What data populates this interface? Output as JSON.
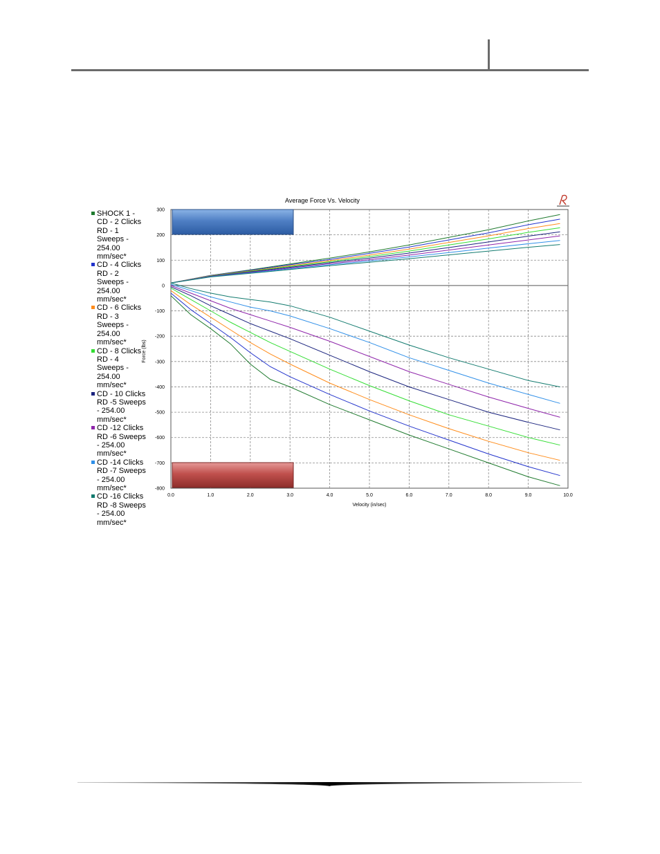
{
  "chart_data": {
    "type": "line",
    "title": "Average Force Vs. Velocity",
    "xlabel": "Velocity (in/sec)",
    "ylabel": "Force (lbs)",
    "xlim": [
      0,
      10
    ],
    "ylim": [
      -800,
      300
    ],
    "x_ticks": [
      "0.0",
      "1.0",
      "2.0",
      "3.0",
      "4.0",
      "5.0",
      "6.0",
      "7.0",
      "8.0",
      "9.0",
      "10.0"
    ],
    "y_ticks": [
      "300",
      "200",
      "100",
      "0",
      "-100",
      "-200",
      "-300",
      "-400",
      "-500",
      "-600",
      "-700",
      "-800"
    ],
    "grid": true,
    "legend_position": "left",
    "x": [
      0.0,
      0.5,
      1.0,
      1.5,
      2.0,
      2.5,
      3.0,
      4.0,
      5.0,
      6.0,
      7.0,
      8.0,
      9.0,
      9.8
    ],
    "series": [
      {
        "name": "SHOCK 1 - CD - 2 Clicks RD - 1 Sweeps - 254.00 mm/sec*",
        "color": "#1f7a2e",
        "values": [
          -40,
          -115,
          -170,
          -230,
          -310,
          -370,
          -400,
          -470,
          -530,
          -590,
          -645,
          -700,
          -755,
          -790
        ]
      },
      {
        "name": "CD - 4 Clicks RD - 2 Sweeps - 254.00 mm/sec*",
        "color": "#2233cc",
        "values": [
          -30,
          -95,
          -150,
          -205,
          -265,
          -320,
          -360,
          -430,
          -495,
          -555,
          -610,
          -665,
          -715,
          -750
        ]
      },
      {
        "name": "CD - 6 Clicks RD - 3 Sweeps - 254.00 mm/sec*",
        "color": "#ff8c1a",
        "values": [
          -20,
          -75,
          -125,
          -175,
          -225,
          -270,
          -310,
          -385,
          -450,
          -510,
          -565,
          -615,
          -660,
          -690
        ]
      },
      {
        "name": " CD - 8 Clicks RD - 4 Sweeps - 254.00 mm/sec*",
        "color": "#33dd33",
        "values": [
          -10,
          -55,
          -100,
          -145,
          -185,
          -225,
          -260,
          -330,
          -395,
          -455,
          -510,
          -555,
          -600,
          -630
        ]
      },
      {
        "name": "CD - 10 Clicks RD -5 Sweeps - 254.00 mm/sec*",
        "color": "#1a237e",
        "values": [
          -5,
          -40,
          -80,
          -115,
          -150,
          -180,
          -210,
          -275,
          -340,
          -400,
          -450,
          -500,
          -540,
          -570
        ]
      },
      {
        "name": "CD -12 Clicks RD -6 Sweeps - 254.00 mm/sec*",
        "color": "#8e24aa",
        "values": [
          0,
          -30,
          -60,
          -90,
          -115,
          -140,
          -165,
          -220,
          -280,
          -340,
          -390,
          -440,
          -485,
          -520
        ]
      },
      {
        "name": "CD -14 Clicks RD -7 Sweeps - 254.00 mm/sec*",
        "color": "#2f8fe8",
        "values": [
          5,
          -20,
          -45,
          -65,
          -85,
          -100,
          -120,
          -170,
          -225,
          -285,
          -335,
          -385,
          -430,
          -465
        ]
      },
      {
        "name": "CD -16 Clicks RD -8 Sweeps - 254.00 mm/sec*",
        "color": "#117a6e",
        "values": [
          10,
          -12,
          -30,
          -45,
          -55,
          -65,
          -80,
          -125,
          -180,
          -235,
          -285,
          -330,
          -375,
          -400
        ]
      }
    ],
    "rebound_x": [
      0.0,
      1.0,
      2.0,
      3.0,
      4.0,
      5.0,
      6.0,
      7.0,
      8.0,
      9.0,
      9.8
    ],
    "rebound_series": [
      {
        "color": "#1f7a2e",
        "values": [
          10,
          40,
          62,
          85,
          108,
          133,
          160,
          190,
          220,
          255,
          280
        ]
      },
      {
        "color": "#2233cc",
        "values": [
          10,
          40,
          60,
          82,
          103,
          127,
          152,
          180,
          208,
          240,
          262
        ]
      },
      {
        "color": "#ff8c1a",
        "values": [
          10,
          39,
          58,
          78,
          98,
          120,
          144,
          170,
          196,
          225,
          245
        ]
      },
      {
        "color": "#33dd33",
        "values": [
          10,
          38,
          56,
          75,
          94,
          114,
          136,
          160,
          184,
          210,
          228
        ]
      },
      {
        "color": "#1a237e",
        "values": [
          10,
          37,
          54,
          72,
          90,
          108,
          128,
          150,
          172,
          195,
          212
        ]
      },
      {
        "color": "#8e24aa",
        "values": [
          10,
          36,
          52,
          69,
          86,
          102,
          120,
          140,
          160,
          180,
          196
        ]
      },
      {
        "color": "#2f8fe8",
        "values": [
          10,
          35,
          50,
          66,
          82,
          97,
          113,
          130,
          148,
          165,
          178
        ]
      },
      {
        "color": "#117a6e",
        "values": [
          10,
          34,
          48,
          63,
          78,
          92,
          106,
          121,
          136,
          151,
          162
        ]
      }
    ]
  },
  "colors": {
    "rebound_box": "#4f7fc4",
    "compression_box": "#c0504d",
    "grid": "#888888",
    "axis": "#555555"
  },
  "logo": {
    "icon": "R-logo-icon"
  }
}
